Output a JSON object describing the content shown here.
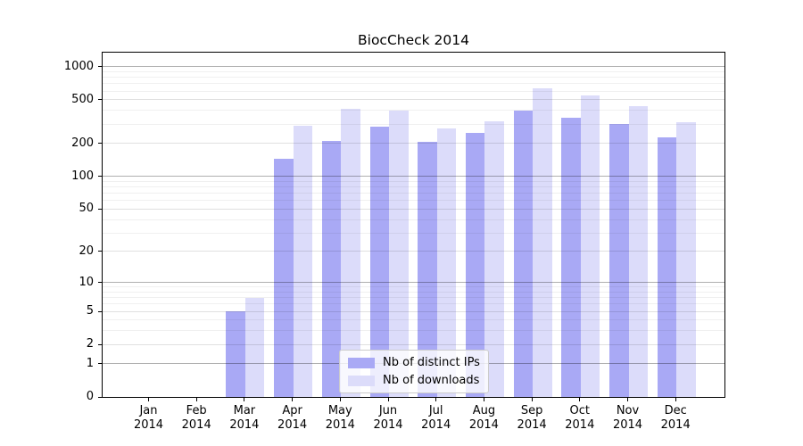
{
  "chart_data": {
    "type": "bar",
    "title": "BiocCheck 2014",
    "xlabel": "",
    "ylabel": "",
    "categories": [
      "Jan",
      "Feb",
      "Mar",
      "Apr",
      "May",
      "Jun",
      "Jul",
      "Aug",
      "Sep",
      "Oct",
      "Nov",
      "Dec"
    ],
    "year_label": "2014",
    "series": [
      {
        "name": "Nb of distinct IPs",
        "color": "#a9a9f5",
        "values": [
          0,
          0,
          5,
          146,
          212,
          286,
          208,
          250,
          400,
          345,
          302,
          229
        ]
      },
      {
        "name": "Nb of downloads",
        "color": "#dcdcfa",
        "values": [
          0,
          0,
          7,
          291,
          415,
          397,
          275,
          320,
          637,
          549,
          439,
          314
        ]
      }
    ],
    "yticks": [
      0,
      1,
      2,
      5,
      10,
      20,
      50,
      100,
      200,
      500,
      1000
    ],
    "scale": "log1p",
    "ylim": [
      0,
      1344
    ],
    "grid": true,
    "grid_color_major": "#b0b0b0",
    "legend_position": "lower-center",
    "background_color": "#ffffff",
    "axis_color": "#000000"
  }
}
